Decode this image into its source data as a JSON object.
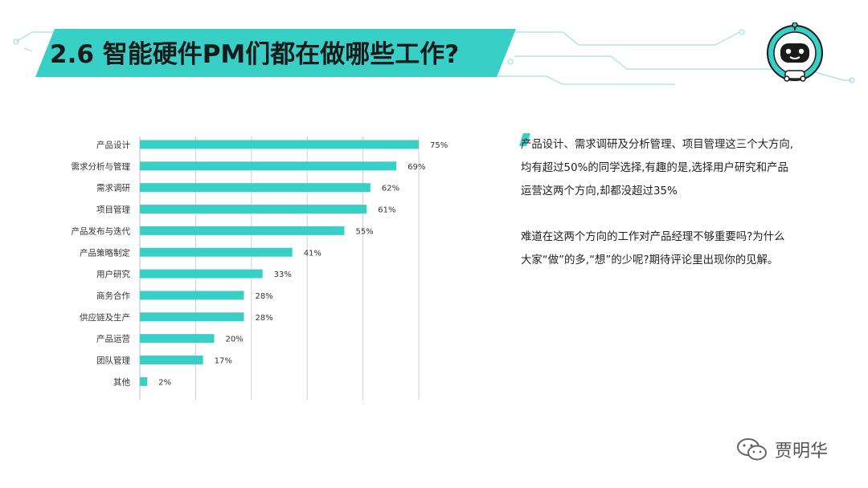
{
  "header": {
    "title": "2.6 智能硬件PM们都在做哪些工作?"
  },
  "logo": {
    "icon": "robot-mascot-icon"
  },
  "chart_data": {
    "type": "bar",
    "orientation": "horizontal",
    "categories": [
      "产品设计",
      "需求分析与管理",
      "需求调研",
      "项目管理",
      "产品发布与迭代",
      "产品策略制定",
      "用户研究",
      "商务合作",
      "供应链及生产",
      "产品运营",
      "团队管理",
      "其他"
    ],
    "values": [
      75,
      69,
      62,
      61,
      55,
      41,
      33,
      28,
      28,
      20,
      17,
      2
    ],
    "value_labels": [
      "75%",
      "69%",
      "62%",
      "61%",
      "55%",
      "41%",
      "33%",
      "28%",
      "28%",
      "20%",
      "17%",
      "2%"
    ],
    "xlim": [
      0,
      75
    ],
    "grid": true,
    "bar_color": "#38cfc7"
  },
  "commentary": {
    "paragraph1": [
      "产品设计、需求调研及分析管理、项目管理这三个大方向,",
      "均有超过50%的同学选择,有趣的是,选择用户研究和产品",
      "运营这两个方向,却都没超过35%"
    ],
    "paragraph2": [
      "难道在这两个方向的工作对产品经理不够重要吗?为什么",
      "大家“做”的多,“想”的少呢?期待评论里出现你的见解。"
    ]
  },
  "watermark": {
    "name": "贾明华",
    "icon": "wechat-icon"
  },
  "colors": {
    "accent": "#38cfc7"
  }
}
